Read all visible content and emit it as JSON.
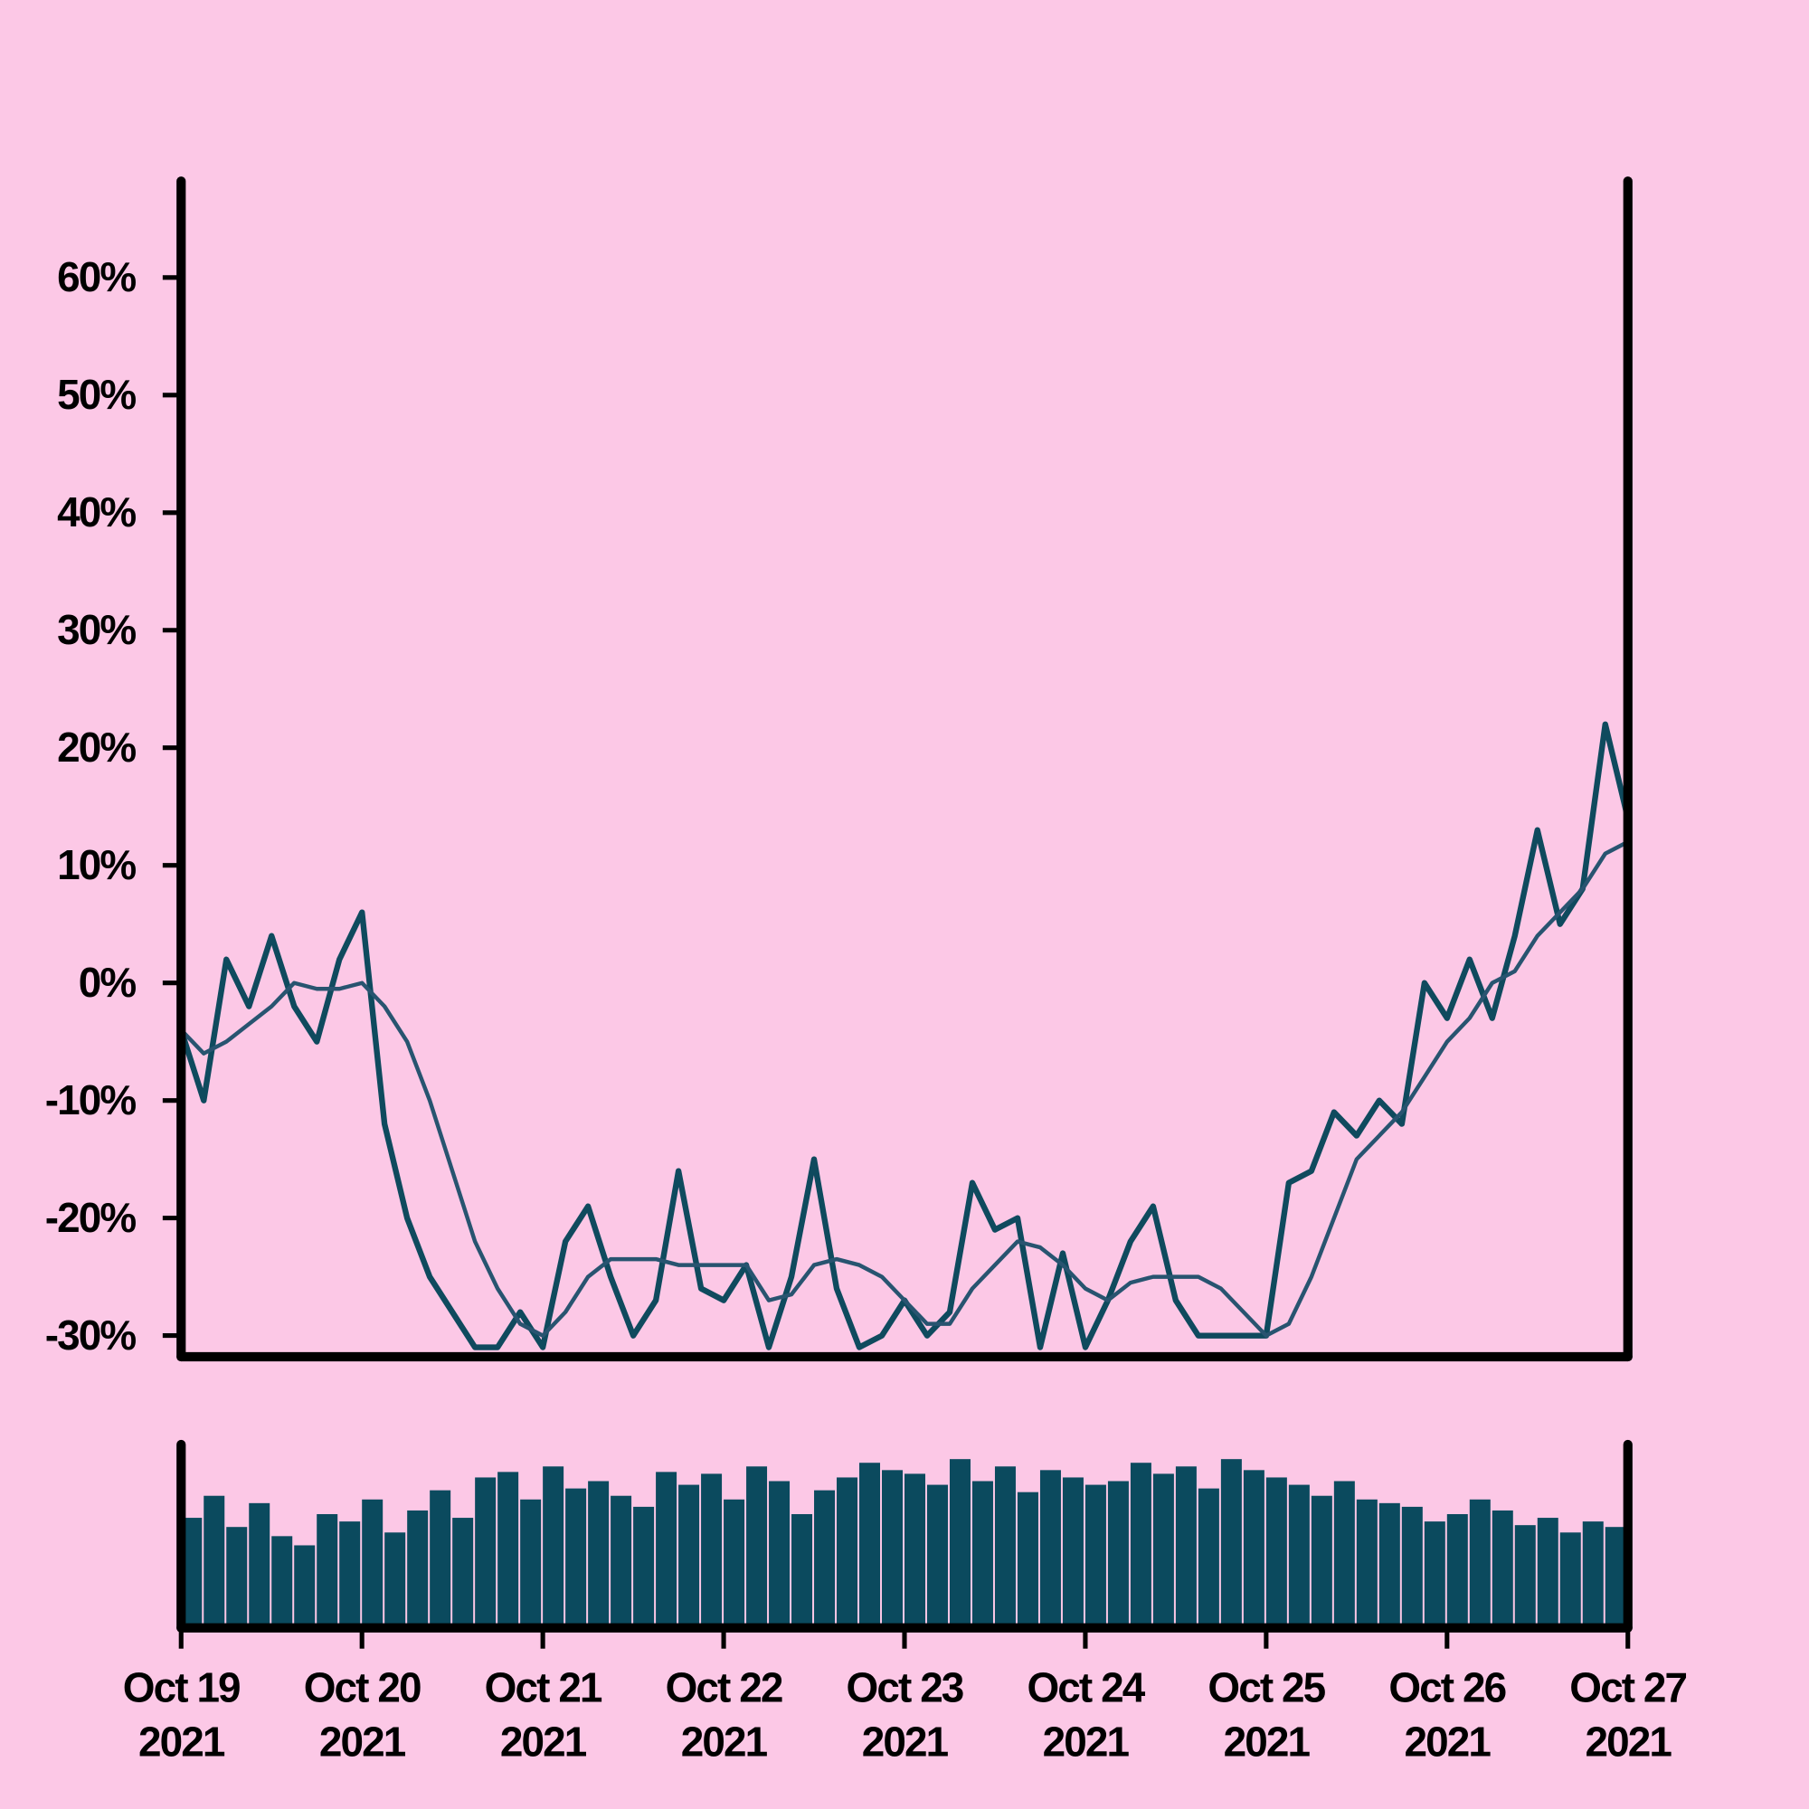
{
  "chart_data": [
    {
      "type": "line",
      "xlim": [
        "2021-10-19",
        "2021-10-27"
      ],
      "ylim": [
        -31.8,
        68.2
      ],
      "yticks": [
        {
          "value": -30,
          "label": "-30%"
        },
        {
          "value": -20,
          "label": "-20%"
        },
        {
          "value": -10,
          "label": "-10%"
        },
        {
          "value": 0,
          "label": "0%"
        },
        {
          "value": 10,
          "label": "10%"
        },
        {
          "value": 20,
          "label": "20%"
        },
        {
          "value": 30,
          "label": "30%"
        },
        {
          "value": 40,
          "label": "40%"
        },
        {
          "value": 50,
          "label": "50%"
        },
        {
          "value": 60,
          "label": "60%"
        }
      ],
      "series": [
        {
          "color": "#0f4a5e",
          "values": [
            -4,
            -10,
            2,
            -2,
            4,
            -2,
            -5,
            2,
            6,
            -12,
            -20,
            -25,
            -28,
            -31,
            -31,
            -28,
            -31,
            -22,
            -19,
            -25,
            -30,
            -27,
            -16,
            -26,
            -27,
            -24,
            -31,
            -25,
            -15,
            -26,
            -31,
            -30,
            -27,
            -30,
            -28,
            -17,
            -21,
            -20,
            -31,
            -23,
            -31,
            -27,
            -22,
            -19,
            -27,
            -30,
            -30,
            -30,
            -30,
            -17,
            -16,
            -11,
            -13,
            -10,
            -12,
            0,
            -3,
            2,
            -3,
            4,
            13,
            5,
            8,
            22,
            14
          ]
        },
        {
          "color": "#285470",
          "values": [
            -4,
            -6,
            -5,
            -3.5,
            -2,
            0,
            -0.5,
            -0.5,
            0,
            -2,
            -5,
            -10,
            -16,
            -22,
            -26,
            -29,
            -30,
            -28,
            -25,
            -23.5,
            -23.5,
            -23.5,
            -24,
            -24,
            -24,
            -24,
            -27,
            -26.5,
            -24,
            -23.5,
            -24,
            -25,
            -27,
            -29,
            -29,
            -26,
            -24,
            -22,
            -22.5,
            -24,
            -26,
            -27,
            -25.5,
            -25,
            -25,
            -25,
            -26,
            -28,
            -30,
            -29,
            -25,
            -20,
            -15,
            -13,
            -11,
            -8,
            -5,
            -3,
            0,
            1,
            4,
            6,
            8,
            11,
            12
          ]
        }
      ]
    },
    {
      "type": "bar",
      "xlim": [
        "2021-10-19",
        "2021-10-27"
      ],
      "ylim": [
        0,
        100
      ],
      "color": "#0b4a5e",
      "values": [
        60,
        72,
        55,
        68,
        50,
        45,
        62,
        58,
        70,
        52,
        64,
        75,
        60,
        82,
        85,
        70,
        88,
        76,
        80,
        72,
        66,
        85,
        78,
        84,
        70,
        88,
        80,
        62,
        75,
        82,
        90,
        86,
        84,
        78,
        92,
        80,
        88,
        74,
        86,
        82,
        78,
        80,
        90,
        84,
        88,
        76,
        92,
        86,
        82,
        78,
        72,
        80,
        70,
        68,
        66,
        58,
        62,
        70,
        64,
        56,
        60,
        52,
        58,
        55
      ],
      "xticks": [
        {
          "value": "2021-10-19",
          "label": "Oct 19 2021"
        },
        {
          "value": "2021-10-20",
          "label": "Oct 20 2021"
        },
        {
          "value": "2021-10-21",
          "label": "Oct 21 2021"
        },
        {
          "value": "2021-10-22",
          "label": "Oct 22 2021"
        },
        {
          "value": "2021-10-23",
          "label": "Oct 23 2021"
        },
        {
          "value": "2021-10-24",
          "label": "Oct 24 2021"
        },
        {
          "value": "2021-10-25",
          "label": "Oct 25 2021"
        },
        {
          "value": "2021-10-26",
          "label": "Oct 26 2021"
        },
        {
          "value": "2021-10-27",
          "label": "Oct 27 2021"
        }
      ]
    }
  ]
}
